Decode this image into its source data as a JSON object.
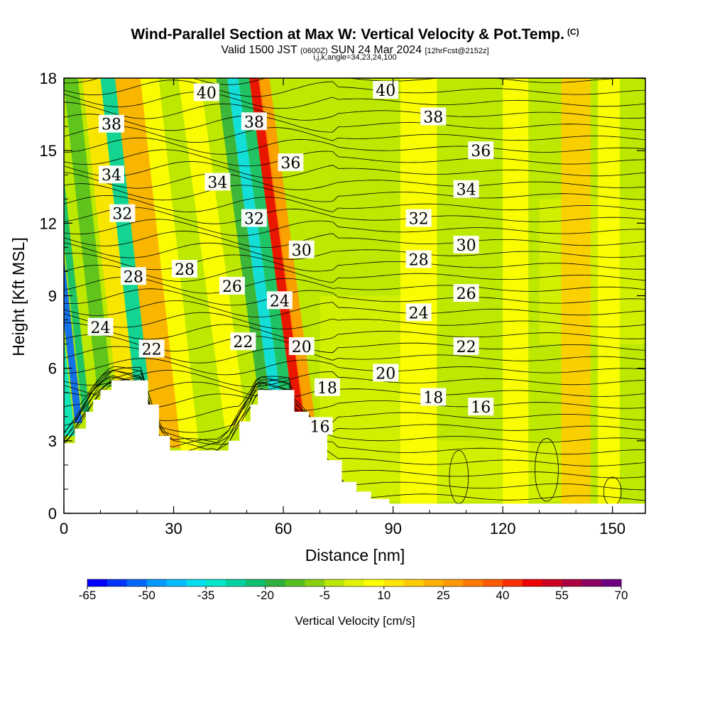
{
  "header": {
    "title": "Wind-Parallel Section at Max W: Vertical Velocity & Pot.Temp.",
    "copyright": "(C)",
    "valid_prefix": "Valid 1500 JST",
    "valid_utc": "(0600Z)",
    "valid_date": "SUN 24 Mar 2024",
    "forecast_info": "[12hrFcst@2152z]",
    "section_params": "i,j,k,angle=34,23,24,100"
  },
  "chart_data": {
    "type": "heatmap",
    "xlabel": "Distance [nm]",
    "ylabel": "Height [Kft MSL]",
    "xlim": [
      0,
      159
    ],
    "ylim": [
      0,
      18
    ],
    "x_ticks": [
      0,
      30,
      60,
      90,
      120,
      150
    ],
    "y_ticks": [
      0,
      3,
      6,
      9,
      12,
      15,
      18
    ],
    "terrain_height_kft": [
      [
        0,
        2.9
      ],
      [
        3,
        3.5
      ],
      [
        6,
        4.2
      ],
      [
        8,
        4.7
      ],
      [
        10,
        5.1
      ],
      [
        13,
        5.5
      ],
      [
        21,
        5.5
      ],
      [
        23,
        4.5
      ],
      [
        26,
        3.2
      ],
      [
        29,
        2.6
      ],
      [
        42,
        2.6
      ],
      [
        45,
        3.0
      ],
      [
        48,
        3.8
      ],
      [
        51,
        4.5
      ],
      [
        53,
        5.1
      ],
      [
        62,
        5.1
      ],
      [
        63,
        4.2
      ],
      [
        67,
        3.6
      ],
      [
        72,
        2.2
      ],
      [
        76,
        1.3
      ],
      [
        80,
        0.9
      ],
      [
        84,
        0.6
      ],
      [
        89,
        0.4
      ],
      [
        159,
        0.4
      ]
    ],
    "colorbar": {
      "title": "Vertical Velocity [cm/s]",
      "levels": [
        -65,
        -60,
        -55,
        -50,
        -45,
        -40,
        -35,
        -30,
        -25,
        -20,
        -15,
        -10,
        -5,
        0,
        5,
        10,
        15,
        20,
        25,
        30,
        35,
        40,
        45,
        50,
        55,
        60,
        65,
        70
      ],
      "tick_labels": [
        "-65",
        "-50",
        "-35",
        "-20",
        "-5",
        "10",
        "25",
        "40",
        "55",
        "70"
      ],
      "colors": [
        "#0000ff",
        "#0033ff",
        "#0066ff",
        "#0099ff",
        "#00bbff",
        "#00ddee",
        "#00e6c8",
        "#00d2a0",
        "#10c070",
        "#30b040",
        "#55c020",
        "#88d010",
        "#bde800",
        "#e2f500",
        "#ffff00",
        "#ffe600",
        "#ffcc00",
        "#ffb000",
        "#ff9900",
        "#ff7a00",
        "#ff5a00",
        "#ff3000",
        "#ee0000",
        "#cc0020",
        "#aa0040",
        "#8c0060",
        "#6e0080"
      ]
    },
    "velocity_bands": [
      {
        "x0": 0,
        "x1": 3,
        "value": -35
      },
      {
        "x0": 3,
        "x1": 5,
        "value": -55
      },
      {
        "x0": 5,
        "x1": 7,
        "value": -25
      },
      {
        "x0": 9,
        "x1": 13,
        "value": -12
      },
      {
        "x0": 14,
        "x1": 19,
        "value": 12
      },
      {
        "x0": 19,
        "x1": 23,
        "value": -30
      },
      {
        "x0": 25,
        "x1": 32,
        "value": 22
      },
      {
        "x0": 32,
        "x1": 37,
        "value": 8
      },
      {
        "x0": 44,
        "x1": 50,
        "value": 8
      },
      {
        "x0": 53,
        "x1": 56,
        "value": -20
      },
      {
        "x0": 56,
        "x1": 59,
        "value": -40
      },
      {
        "x0": 59,
        "x1": 62,
        "value": -25
      },
      {
        "x0": 63,
        "x1": 66,
        "value": 45
      },
      {
        "x0": 66,
        "x1": 69,
        "value": 28
      },
      {
        "x0": 92,
        "x1": 102,
        "value": 6
      },
      {
        "x0": 120,
        "x1": 127,
        "value": 8
      },
      {
        "x0": 136,
        "x1": 144,
        "value": 18
      },
      {
        "x0": 146,
        "x1": 152,
        "value": 8
      }
    ],
    "contour_labels": [
      {
        "value": "40",
        "x": 39,
        "y": 17.4
      },
      {
        "value": "40",
        "x": 88,
        "y": 17.5
      },
      {
        "value": "38",
        "x": 13,
        "y": 16.1
      },
      {
        "value": "38",
        "x": 52,
        "y": 16.2
      },
      {
        "value": "38",
        "x": 101,
        "y": 16.4
      },
      {
        "value": "36",
        "x": 62,
        "y": 14.5
      },
      {
        "value": "36",
        "x": 114,
        "y": 15.0
      },
      {
        "value": "34",
        "x": 13,
        "y": 14.0
      },
      {
        "value": "34",
        "x": 42,
        "y": 13.7
      },
      {
        "value": "34",
        "x": 110,
        "y": 13.4
      },
      {
        "value": "32",
        "x": 16,
        "y": 12.4
      },
      {
        "value": "32",
        "x": 52,
        "y": 12.2
      },
      {
        "value": "32",
        "x": 97,
        "y": 12.2
      },
      {
        "value": "30",
        "x": 65,
        "y": 10.9
      },
      {
        "value": "30",
        "x": 110,
        "y": 11.1
      },
      {
        "value": "28",
        "x": 19,
        "y": 9.8
      },
      {
        "value": "28",
        "x": 33,
        "y": 10.1
      },
      {
        "value": "28",
        "x": 97,
        "y": 10.5
      },
      {
        "value": "26",
        "x": 46,
        "y": 9.4
      },
      {
        "value": "26",
        "x": 110,
        "y": 9.1
      },
      {
        "value": "24",
        "x": 59,
        "y": 8.8
      },
      {
        "value": "24",
        "x": 10,
        "y": 7.7
      },
      {
        "value": "24",
        "x": 97,
        "y": 8.3
      },
      {
        "value": "22",
        "x": 24,
        "y": 6.8
      },
      {
        "value": "22",
        "x": 49,
        "y": 7.1
      },
      {
        "value": "22",
        "x": 110,
        "y": 6.9
      },
      {
        "value": "20",
        "x": 65,
        "y": 6.9
      },
      {
        "value": "20",
        "x": 88,
        "y": 5.8
      },
      {
        "value": "18",
        "x": 72,
        "y": 5.2
      },
      {
        "value": "18",
        "x": 101,
        "y": 4.8
      },
      {
        "value": "16",
        "x": 70,
        "y": 3.6
      },
      {
        "value": "16",
        "x": 114,
        "y": 4.4
      }
    ]
  }
}
